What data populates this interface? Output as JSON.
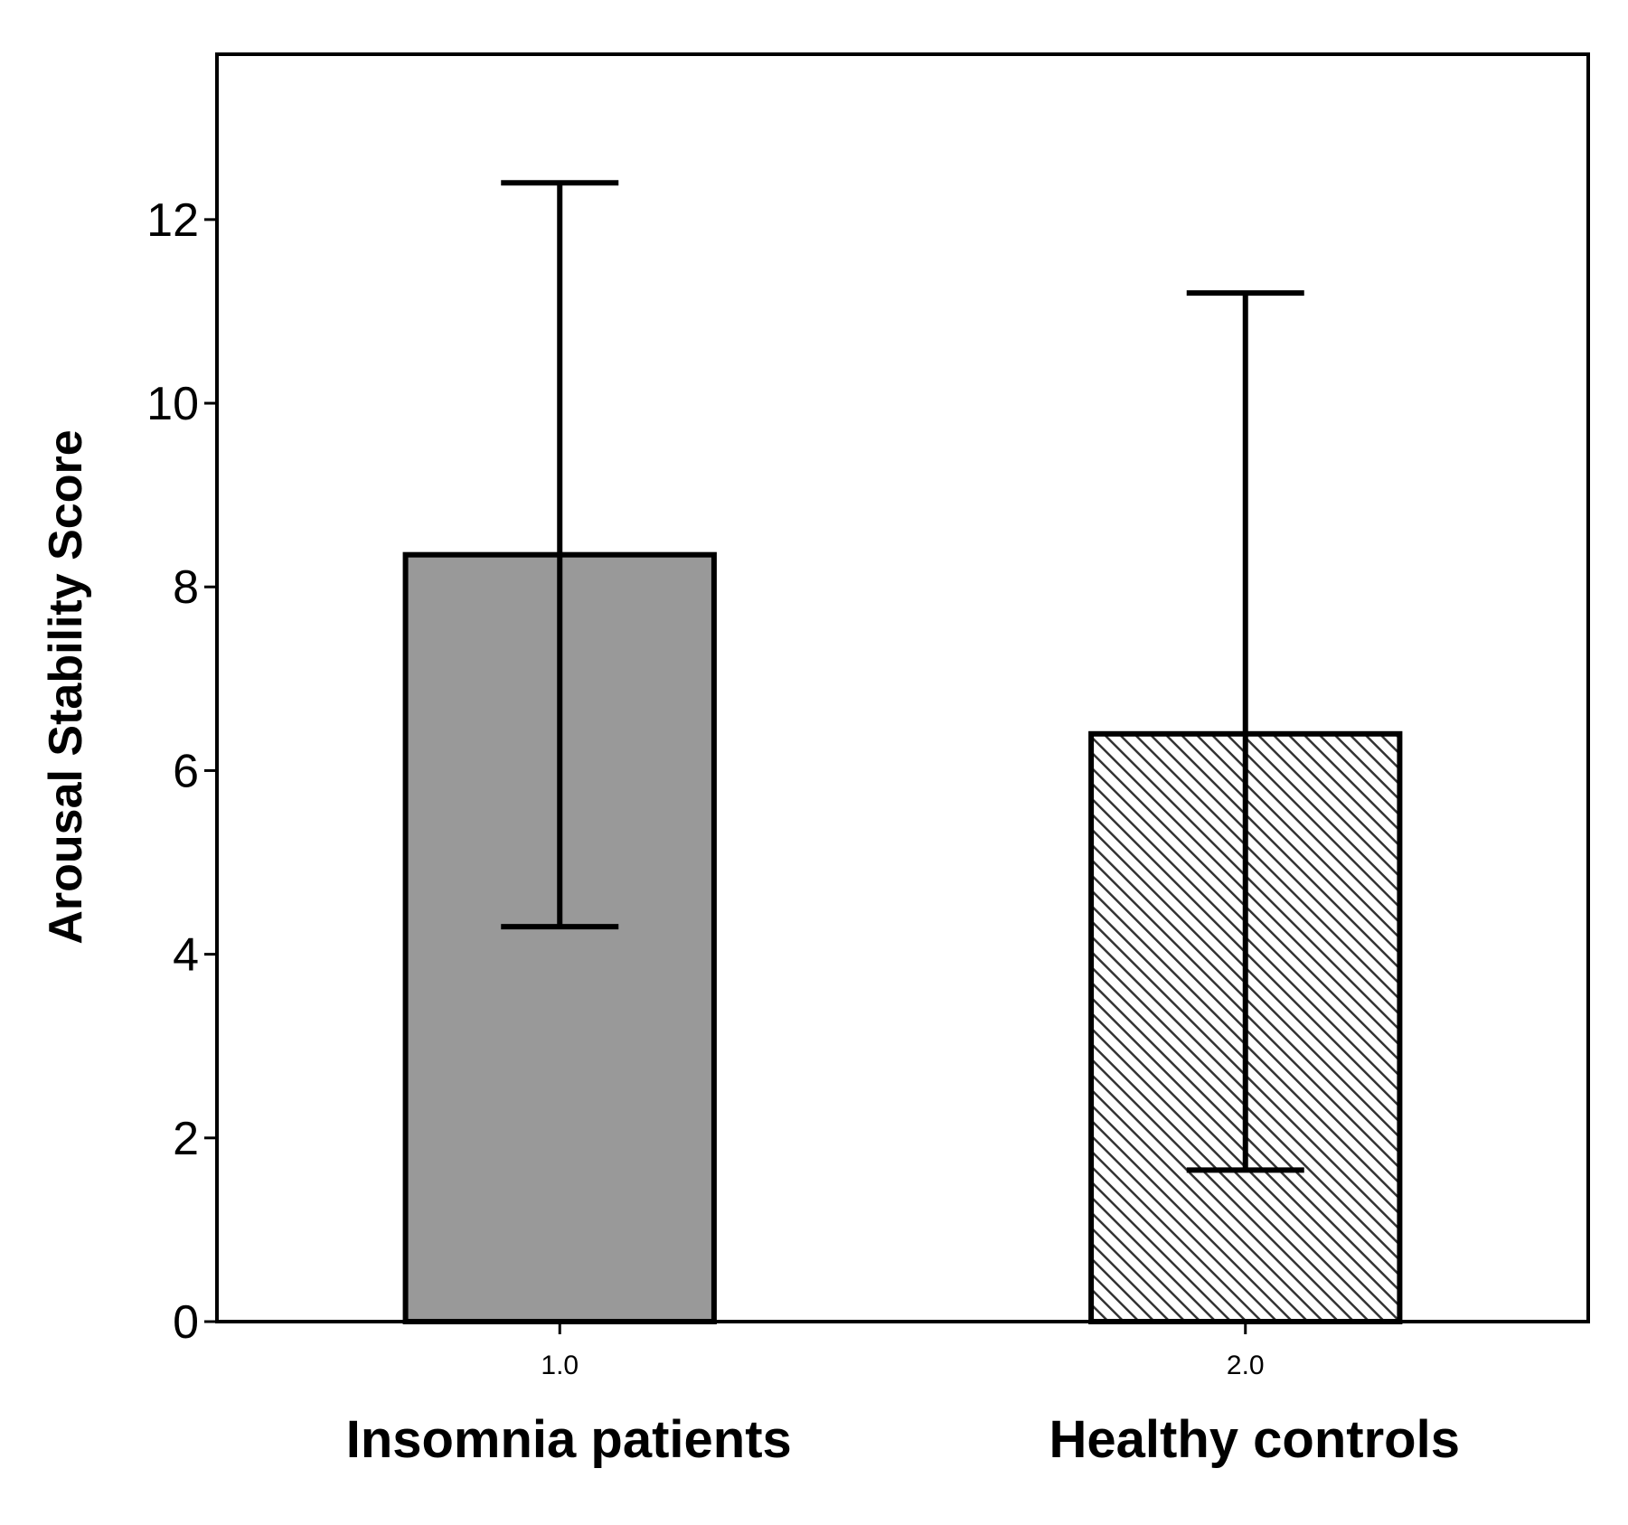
{
  "chart_data": {
    "type": "bar",
    "title": "",
    "xlabel": "",
    "ylabel": "Arousal Stability Score",
    "ylim": [
      0,
      13.8
    ],
    "yticks": [
      0,
      2,
      4,
      6,
      8,
      10,
      12
    ],
    "yticklabels": [
      "0",
      "2",
      "4",
      "6",
      "8",
      "10",
      "12"
    ],
    "grid": false,
    "legend": "none",
    "categories": [
      "1.0",
      "2.0"
    ],
    "category_names": [
      "Insomnia patients",
      "Healthy controls"
    ],
    "values": [
      8.35,
      6.4
    ],
    "error_bars": [
      {
        "lower": 4.3,
        "upper": 12.4
      },
      {
        "lower": 1.65,
        "upper": 11.2
      }
    ],
    "fills": [
      "solid",
      "diagonal-hatch"
    ],
    "colors": {
      "solid_bar": "#999999",
      "hatch_bg": "#ffffff",
      "hatch_line": "#333333",
      "axis": "#000000"
    }
  }
}
